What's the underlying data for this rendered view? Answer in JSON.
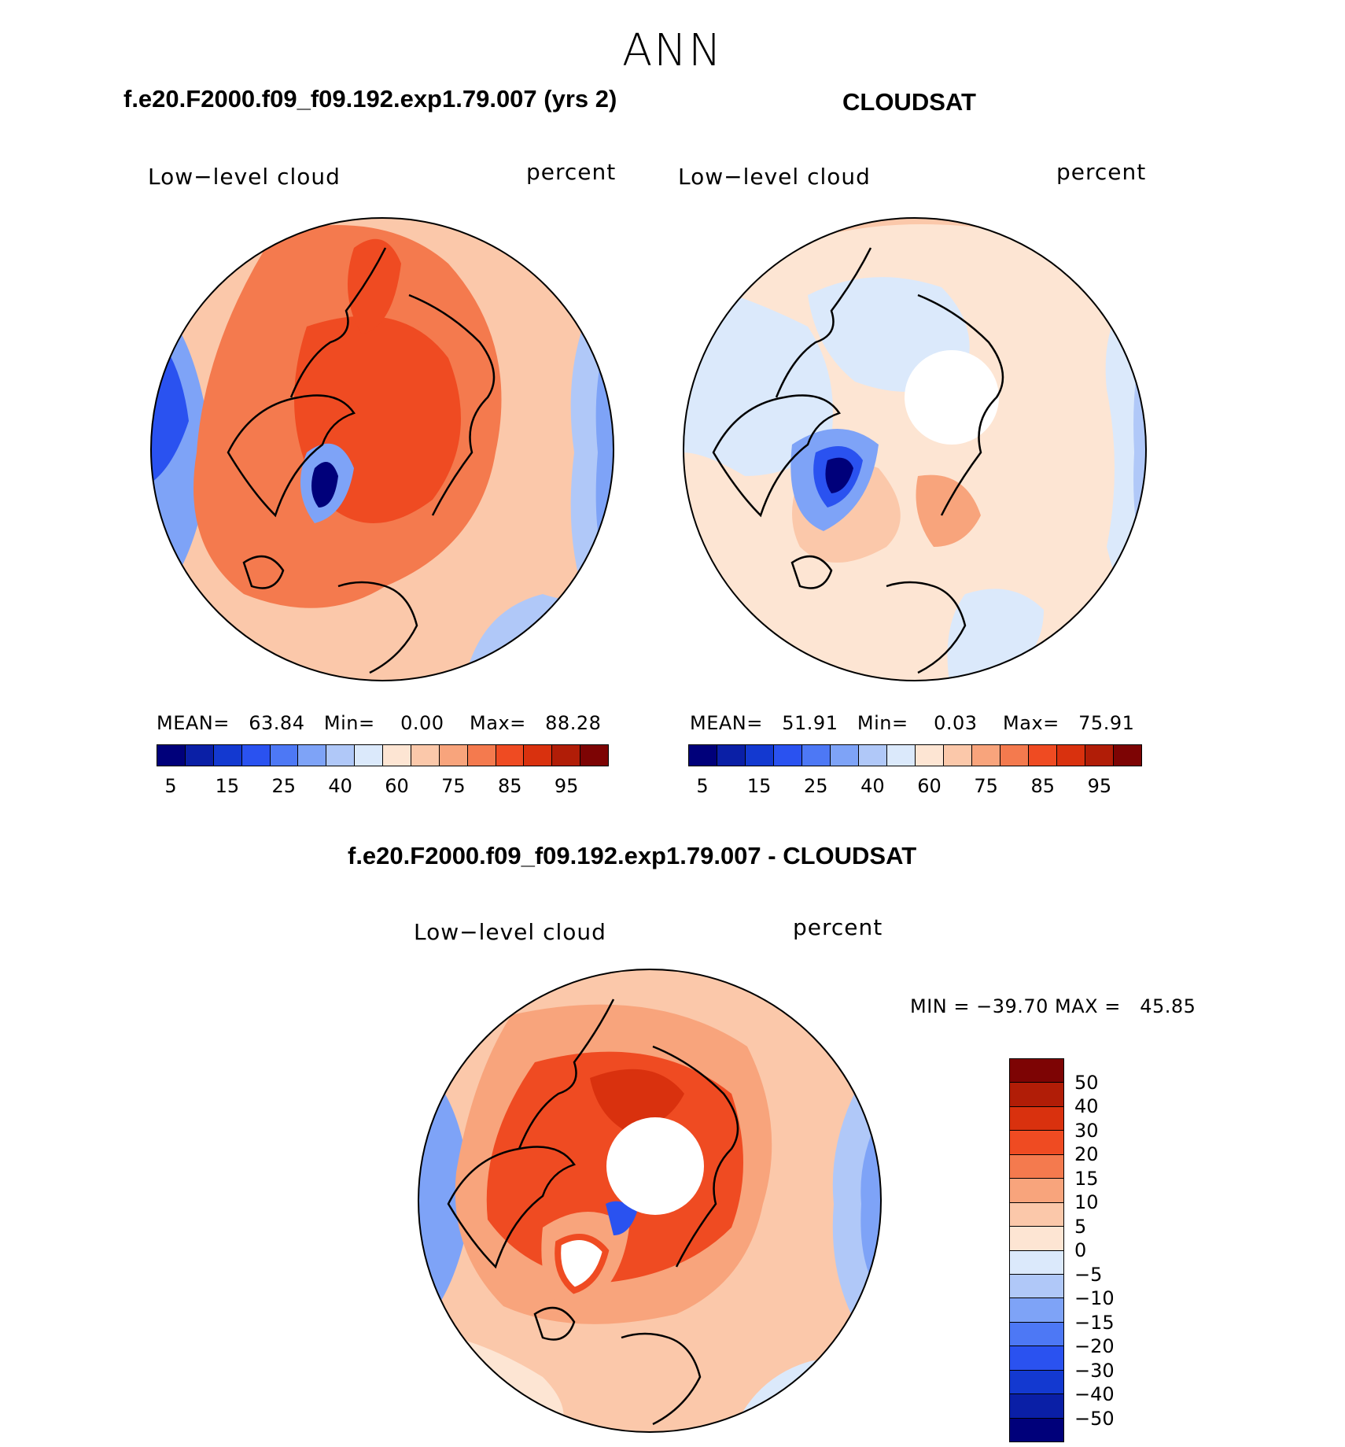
{
  "season": "ANN",
  "panels": [
    {
      "title": "f.e20.F2000.f09_f09.192.exp1.79.007 (yrs 2)",
      "left_label": "Low−level cloud",
      "right_label": "percent",
      "stats": {
        "mean_label": "MEAN=",
        "mean": "63.84",
        "min_label": "Min=",
        "min": "0.00",
        "max_label": "Max=",
        "max": "88.28"
      }
    },
    {
      "title": "CLOUDSAT",
      "left_label": "Low−level cloud",
      "right_label": "percent",
      "stats": {
        "mean_label": "MEAN=",
        "mean": "51.91",
        "min_label": "Min=",
        "min": "0.03",
        "max_label": "Max=",
        "max": "75.91"
      }
    },
    {
      "title": "f.e20.F2000.f09_f09.192.exp1.79.007 - CLOUDSAT",
      "left_label": "Low−level cloud",
      "right_label": "percent",
      "minmax": "MIN = −39.70 MAX =   45.85"
    }
  ],
  "abs_colorbar": {
    "colors": [
      "#00007a",
      "#0a1fa6",
      "#1339d0",
      "#2a52f0",
      "#4d78f5",
      "#7ea3f7",
      "#b0c8f8",
      "#dbe9fb",
      "#fde5d3",
      "#fbc8aa",
      "#f8a47c",
      "#f47a4e",
      "#ef4b22",
      "#d9310e",
      "#b11d07",
      "#7d0404"
    ],
    "tick_labels": [
      "5",
      "15",
      "25",
      "40",
      "60",
      "75",
      "85",
      "95"
    ]
  },
  "diff_colorbar": {
    "colors": [
      "#7d0404",
      "#b11d07",
      "#d9310e",
      "#ef4b22",
      "#f47a4e",
      "#f8a47c",
      "#fbc8aa",
      "#fde5d3",
      "#dbe9fb",
      "#b0c8f8",
      "#7ea3f7",
      "#4d78f5",
      "#2a52f0",
      "#1339d0",
      "#0a1fa6",
      "#00007a"
    ],
    "tick_labels": [
      "50",
      "40",
      "30",
      "20",
      "15",
      "10",
      "5",
      "0",
      "−5",
      "−10",
      "−15",
      "−20",
      "−30",
      "−40",
      "−50"
    ]
  }
}
